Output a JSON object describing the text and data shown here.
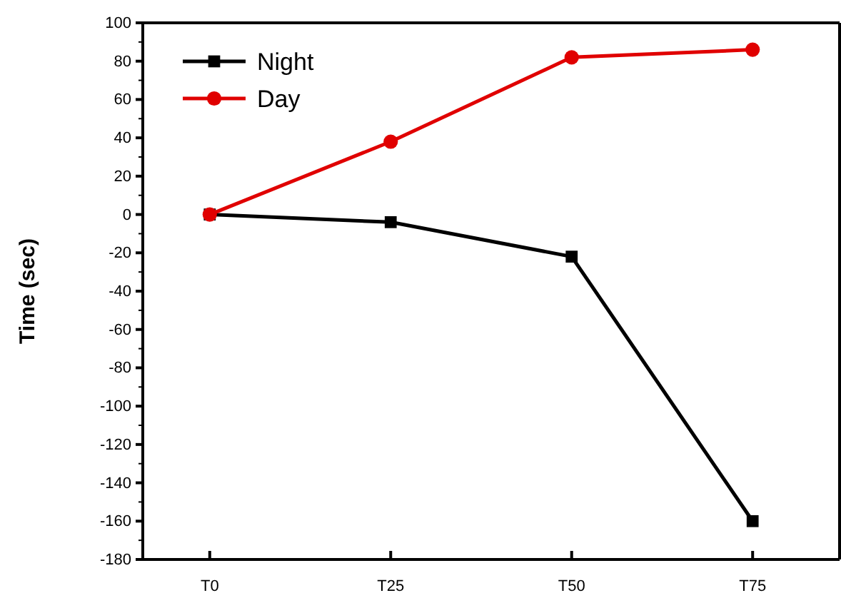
{
  "chart_data": {
    "type": "line",
    "ylabel": "Time (sec)",
    "categories": [
      "T0",
      "T25",
      "T50",
      "T75"
    ],
    "series": [
      {
        "name": "Night",
        "color": "#000000",
        "values": [
          0,
          -4,
          -22,
          -160
        ],
        "marker": "square"
      },
      {
        "name": "Day",
        "color": "#e00000",
        "values": [
          0,
          38,
          82,
          86
        ],
        "marker": "circle"
      }
    ],
    "ylim": [
      -180,
      100
    ],
    "yticks": [
      -180,
      -160,
      -140,
      -120,
      -100,
      -80,
      -60,
      -40,
      -20,
      0,
      20,
      40,
      60,
      80,
      100
    ],
    "legend": "top left",
    "grid": false,
    "line_style": "solid"
  }
}
